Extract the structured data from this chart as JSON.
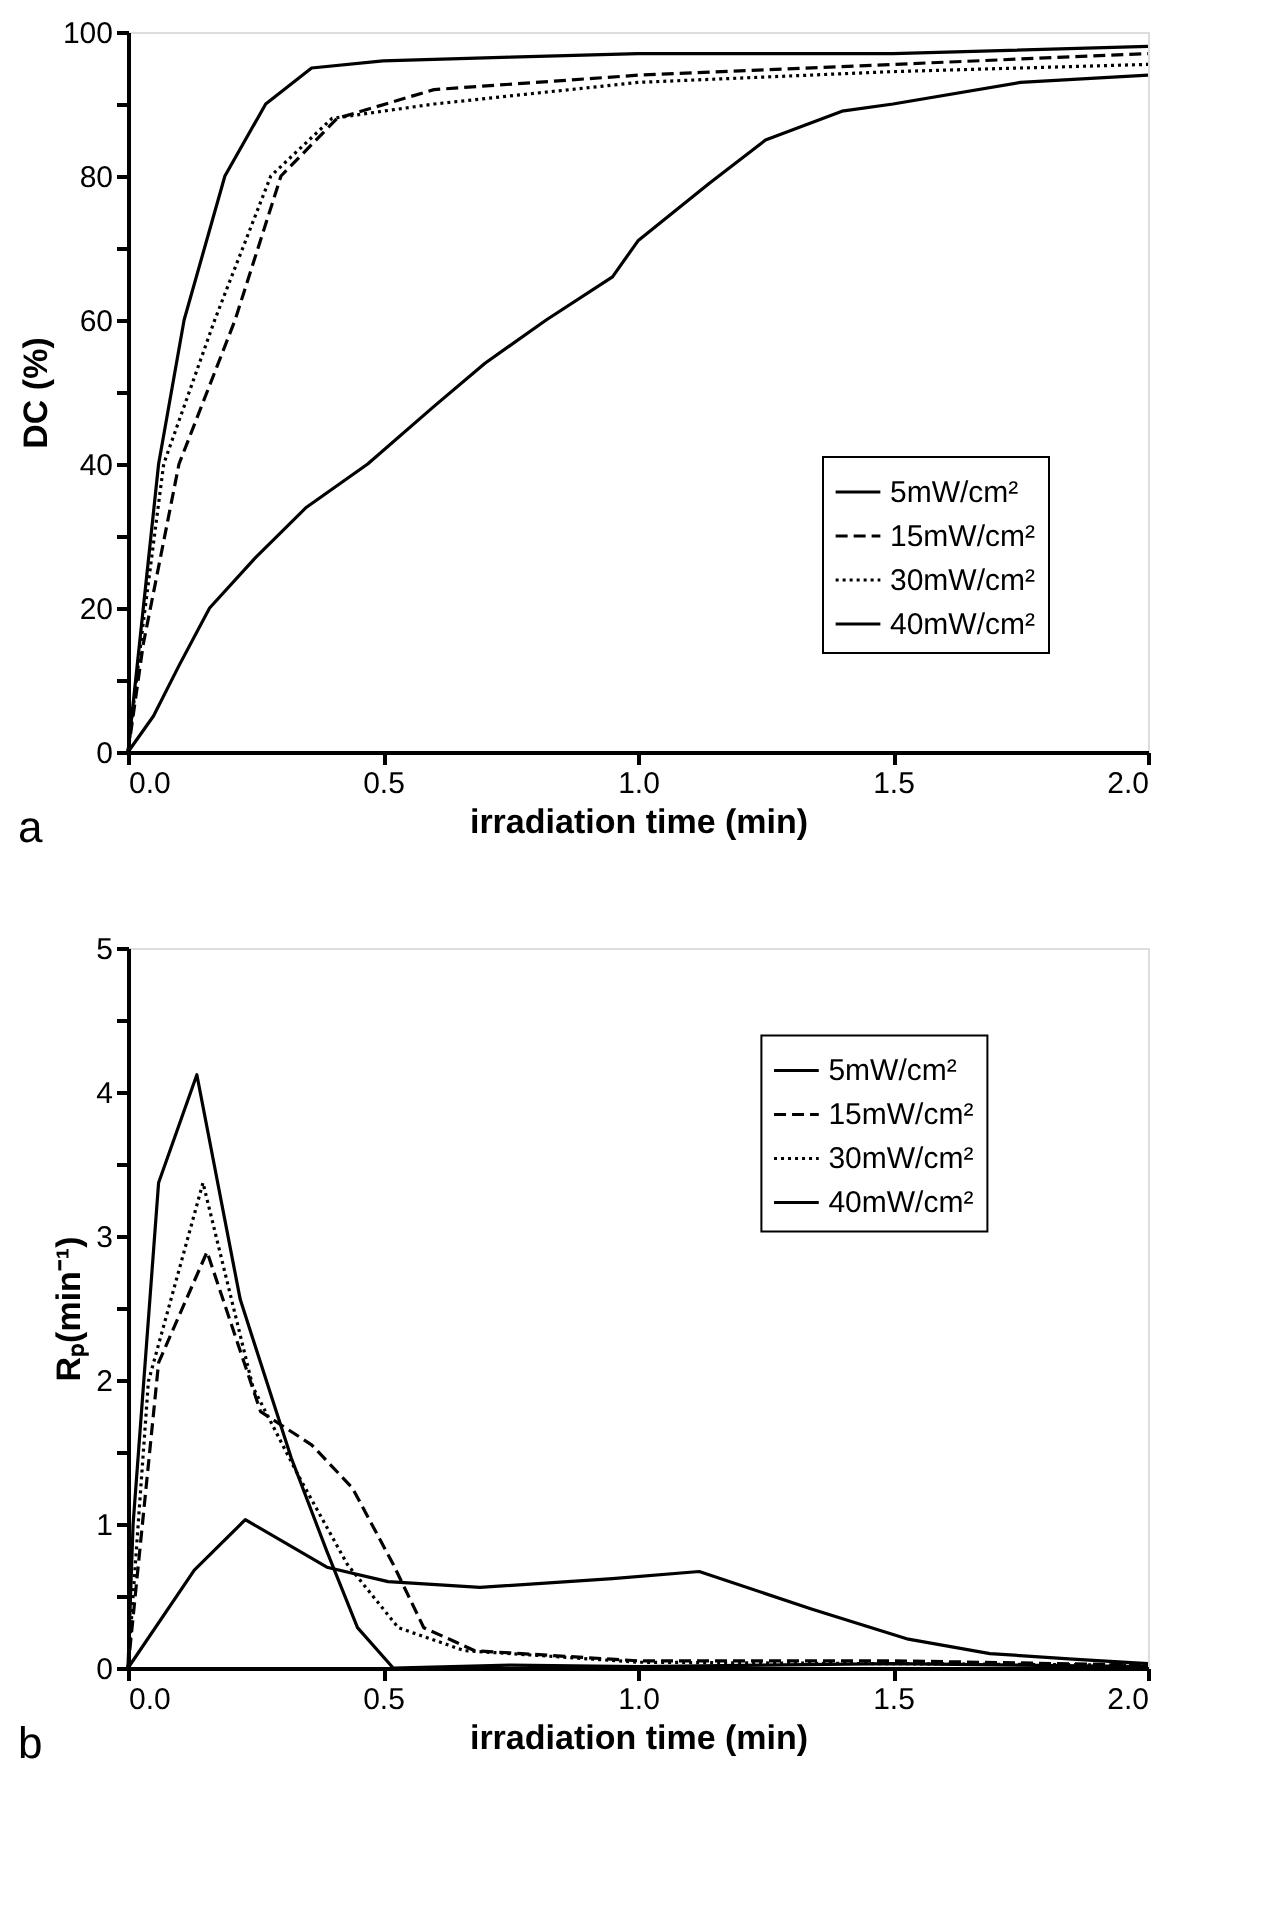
{
  "chart_data": [
    {
      "type": "line",
      "xlabel": "irradiation time (min)",
      "ylabel": "DC (%)",
      "annotations": [
        "a"
      ],
      "legend": "bottom right",
      "grid": false,
      "xlim": [
        0,
        2
      ],
      "xticks": [
        {
          "value": 0,
          "label": "0.0"
        },
        {
          "value": 0.5,
          "label": "0.5"
        },
        {
          "value": 1,
          "label": "1.0"
        },
        {
          "value": 1.5,
          "label": "1.5"
        },
        {
          "value": 2,
          "label": "2.0"
        }
      ],
      "ylim": [
        0,
        100
      ],
      "yticks": [
        0,
        {
          "value": 10,
          "label": null
        },
        20,
        {
          "value": 30,
          "label": null
        },
        40,
        {
          "value": 50,
          "label": null
        },
        60,
        {
          "value": 70,
          "label": null
        },
        80,
        {
          "value": 90,
          "label": null
        },
        100
      ],
      "series": [
        {
          "name": "5mW/cm²",
          "color": "#000000",
          "line_style": "solid",
          "x": [
            0,
            0.05,
            0.1,
            0.16,
            0.25,
            0.35,
            0.47,
            0.6,
            0.7,
            0.82,
            0.95,
            1.0,
            1.14,
            1.25,
            1.4,
            1.5,
            1.75,
            2.0
          ],
          "values": [
            0,
            5,
            12,
            20,
            27,
            34,
            40,
            48,
            54,
            60,
            66,
            71,
            79,
            85,
            89,
            90,
            93,
            94
          ]
        },
        {
          "name": "15mW/cm²",
          "color": "#000000",
          "line_style": "dashed",
          "x": [
            0,
            0.03,
            0.1,
            0.21,
            0.3,
            0.41,
            0.6,
            1.0,
            1.5,
            2.0
          ],
          "values": [
            0,
            15,
            40,
            60,
            80,
            88,
            92,
            94,
            95.5,
            97
          ]
        },
        {
          "name": "30mW/cm²",
          "color": "#000000",
          "line_style": "dotted",
          "x": [
            0,
            0.03,
            0.07,
            0.17,
            0.28,
            0.4,
            0.6,
            1.0,
            1.5,
            2.0
          ],
          "values": [
            0,
            18,
            40,
            60,
            80,
            88,
            90,
            93,
            94.5,
            95.5
          ]
        },
        {
          "name": "40mW/cm²",
          "color": "#000000",
          "line_style": "solid",
          "x": [
            0,
            0.03,
            0.06,
            0.11,
            0.19,
            0.27,
            0.36,
            0.5,
            0.75,
            1.0,
            1.5,
            2.0
          ],
          "values": [
            0,
            20,
            40,
            60,
            80,
            90,
            95,
            96,
            96.5,
            97,
            97,
            98
          ]
        }
      ]
    },
    {
      "type": "line",
      "xlabel": "irradiation time (min)",
      "ylabel": "Rₚ(min⁻¹)",
      "annotations": [
        "b"
      ],
      "legend": "top right",
      "grid": false,
      "xlim": [
        0,
        2
      ],
      "xticks": [
        {
          "value": 0,
          "label": "0.0"
        },
        {
          "value": 0.5,
          "label": "0.5"
        },
        {
          "value": 1,
          "label": "1.0"
        },
        {
          "value": 1.5,
          "label": "1.5"
        },
        {
          "value": 2,
          "label": "2.0"
        }
      ],
      "ylim": [
        0,
        5
      ],
      "yticks": [
        0,
        {
          "value": 0.5,
          "label": null
        },
        1,
        {
          "value": 1.5,
          "label": null
        },
        2,
        {
          "value": 2.5,
          "label": null
        },
        3,
        {
          "value": 3.5,
          "label": null
        },
        4,
        {
          "value": 4.5,
          "label": null
        },
        5
      ],
      "series": [
        {
          "name": "5mW/cm²",
          "color": "#000000",
          "line_style": "solid",
          "x": [
            0,
            0.13,
            0.23,
            0.39,
            0.51,
            0.69,
            0.95,
            1.12,
            1.34,
            1.53,
            1.69,
            1.86,
            2.0
          ],
          "values": [
            0,
            0.68,
            1.03,
            0.7,
            0.6,
            0.56,
            0.62,
            0.67,
            0.41,
            0.2,
            0.1,
            0.06,
            0.03
          ]
        },
        {
          "name": "15mW/cm²",
          "color": "#000000",
          "line_style": "dashed",
          "x": [
            0,
            0.06,
            0.155,
            0.26,
            0.36,
            0.44,
            0.52,
            0.58,
            0.68,
            1.0,
            1.5,
            2.0
          ],
          "values": [
            0,
            2.12,
            2.89,
            1.78,
            1.55,
            1.25,
            0.72,
            0.28,
            0.12,
            0.05,
            0.05,
            0.02
          ]
        },
        {
          "name": "30mW/cm²",
          "color": "#000000",
          "line_style": "dotted",
          "x": [
            0,
            0.02,
            0.04,
            0.147,
            0.245,
            0.335,
            0.43,
            0.53,
            0.66,
            0.75,
            1.0,
            1.5,
            2.0
          ],
          "values": [
            0,
            1.0,
            1.99,
            3.37,
            1.95,
            1.33,
            0.72,
            0.28,
            0.12,
            0.1,
            0.04,
            0.03,
            0.02
          ]
        },
        {
          "name": "40mW/cm²",
          "color": "#000000",
          "line_style": "solid",
          "x": [
            0,
            0.01,
            0.06,
            0.135,
            0.22,
            0.32,
            0.39,
            0.45,
            0.52,
            0.75,
            1.0,
            1.5,
            2.0
          ],
          "values": [
            0,
            1.0,
            3.37,
            4.12,
            2.56,
            1.46,
            0.81,
            0.28,
            0,
            0.02,
            0.01,
            0.03,
            0.01
          ]
        }
      ]
    }
  ]
}
